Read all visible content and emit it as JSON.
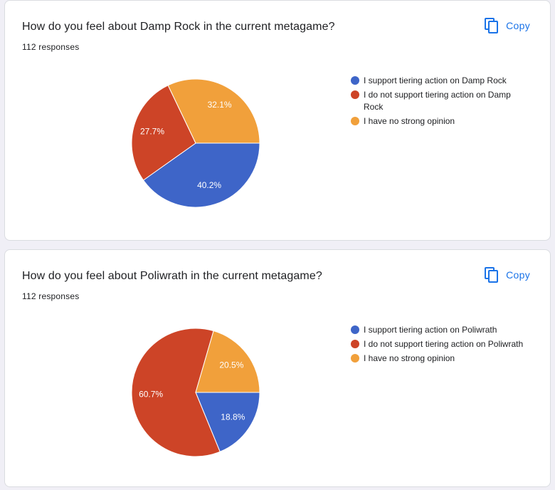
{
  "copy_label": "Copy",
  "colors": {
    "blue": "#3e65c8",
    "red": "#cd4427",
    "orange": "#f1a03b",
    "accent": "#1a73e8"
  },
  "cards": [
    {
      "title": "How do you feel about Damp Rock in the current metagame?",
      "responses": "112 responses"
    },
    {
      "title": "How do you feel about Poliwrath in the current metagame?",
      "responses": "112 responses"
    }
  ],
  "chart_data": [
    {
      "type": "pie",
      "title": "How do you feel about Damp Rock in the current metagame?",
      "categories": [
        "I support tiering action on Damp Rock",
        "I do not support tiering action on Damp Rock",
        "I have no strong opinion"
      ],
      "values": [
        40.2,
        27.7,
        32.1
      ],
      "labels": [
        "40.2%",
        "27.7%",
        "32.1%"
      ],
      "colors": [
        "#3e65c8",
        "#cd4427",
        "#f1a03b"
      ],
      "legend": "right"
    },
    {
      "type": "pie",
      "title": "How do you feel about Poliwrath in the current metagame?",
      "categories": [
        "I support tiering action on Poliwrath",
        "I do not support tiering action on Poliwrath",
        "I have no strong opinion"
      ],
      "values": [
        18.8,
        60.7,
        20.5
      ],
      "labels": [
        "18.8%",
        "60.7%",
        "20.5%"
      ],
      "colors": [
        "#3e65c8",
        "#cd4427",
        "#f1a03b"
      ],
      "legend": "right"
    }
  ]
}
